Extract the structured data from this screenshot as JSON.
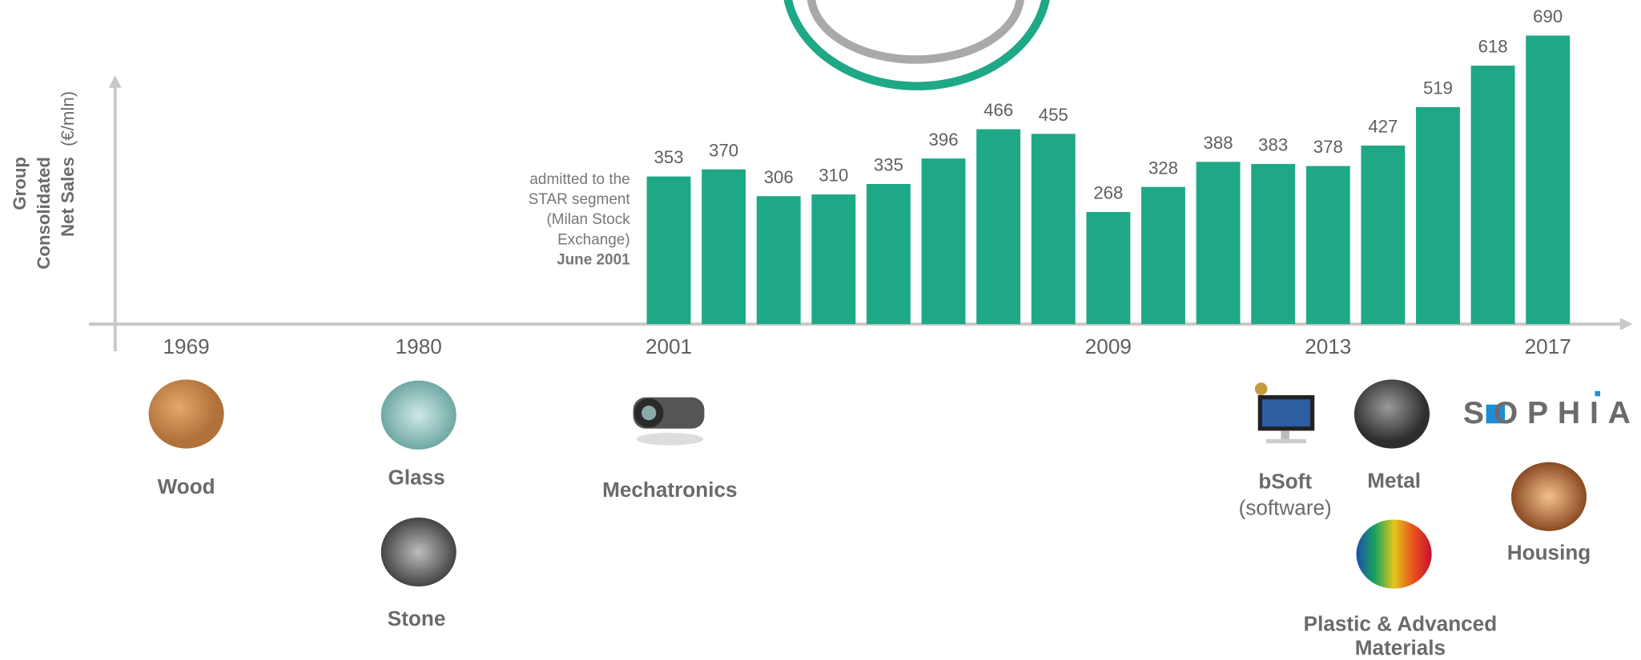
{
  "chart_data": {
    "type": "bar",
    "y_label_lines": [
      "Group",
      "Consolidated",
      "Net Sales"
    ],
    "y_unit": "(€/mln)",
    "early_years": [
      "1969",
      "1980"
    ],
    "categories": [
      "2001",
      null,
      null,
      null,
      null,
      null,
      null,
      null,
      "2009",
      null,
      null,
      null,
      "2013",
      null,
      null,
      null,
      "2017"
    ],
    "values": [
      353,
      370,
      306,
      310,
      335,
      396,
      466,
      455,
      268,
      328,
      388,
      383,
      378,
      427,
      519,
      618,
      690
    ],
    "color": "#1ea886",
    "ylim": [
      0,
      700
    ],
    "annotation_lines": [
      "admitted to the",
      "STAR segment",
      "(Milan Stock",
      "Exchange)"
    ],
    "annotation_date": "June 2001",
    "sectors": [
      {
        "lines": [
          "Wood"
        ]
      },
      {
        "lines": [
          "Glass"
        ]
      },
      {
        "lines": [
          "Stone"
        ]
      },
      {
        "lines": [
          "Mechatronics"
        ]
      },
      {
        "lines": [
          "bSoft",
          "(software)"
        ]
      },
      {
        "lines": [
          "Metal"
        ]
      },
      {
        "lines": [
          "Plastic & Advanced",
          "Materials"
        ]
      },
      {
        "lines": [
          "Housing"
        ]
      }
    ],
    "logo": "SOPHIA"
  }
}
